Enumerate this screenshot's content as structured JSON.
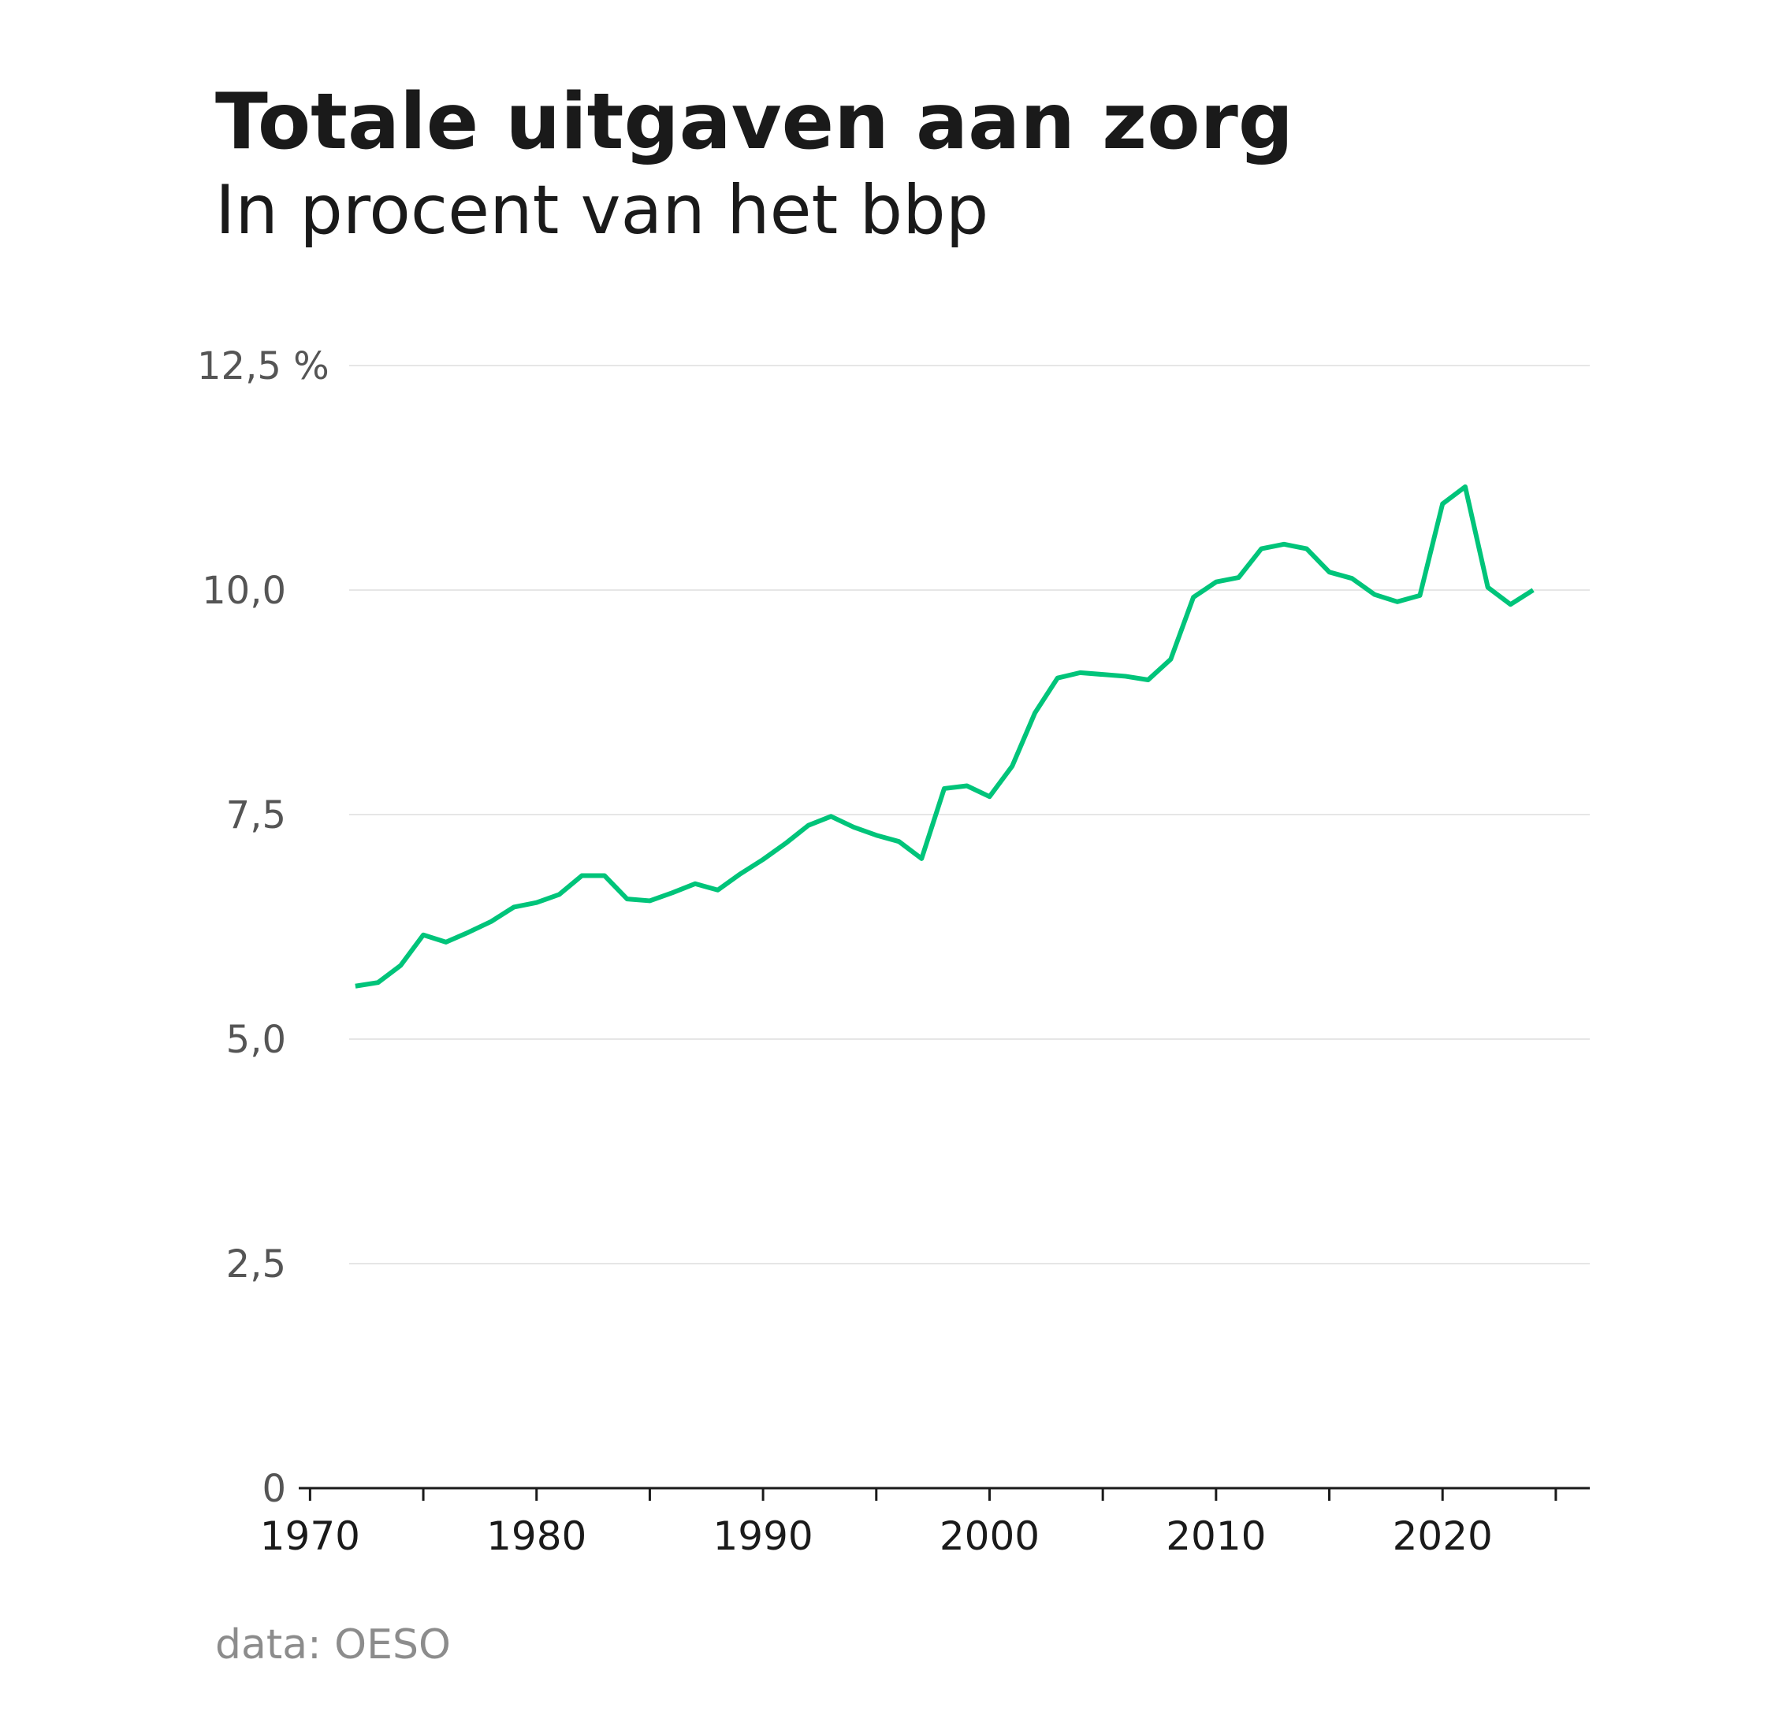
{
  "chart_data": {
    "type": "line",
    "title": "Totale uitgaven aan zorg",
    "subtitle": "In procent van het bbp",
    "source": "data: OESO",
    "x": [
      1972,
      1973,
      1974,
      1975,
      1976,
      1977,
      1978,
      1979,
      1980,
      1981,
      1982,
      1983,
      1984,
      1985,
      1986,
      1987,
      1988,
      1989,
      1990,
      1991,
      1992,
      1993,
      1994,
      1995,
      1996,
      1997,
      1998,
      1999,
      2000,
      2001,
      2002,
      2003,
      2004,
      2005,
      2006,
      2007,
      2008,
      2009,
      2010,
      2011,
      2012,
      2013,
      2014,
      2015,
      2016,
      2017,
      2018,
      2019,
      2020,
      2021,
      2022,
      2023,
      2024
    ],
    "series": [
      {
        "name": "Totale uitgaven aan zorg",
        "color": "#00c47a",
        "values": [
          5.59,
          5.63,
          5.82,
          6.16,
          6.08,
          6.19,
          6.31,
          6.47,
          6.52,
          6.61,
          6.82,
          6.82,
          6.56,
          6.54,
          6.63,
          6.73,
          6.66,
          6.84,
          7.0,
          7.18,
          7.38,
          7.48,
          7.36,
          7.27,
          7.2,
          7.01,
          7.79,
          7.82,
          7.7,
          8.04,
          8.63,
          9.02,
          9.08,
          9.06,
          9.04,
          9.0,
          9.23,
          9.92,
          10.09,
          10.14,
          10.46,
          10.51,
          10.46,
          10.2,
          10.13,
          9.95,
          9.87,
          9.94,
          10.96,
          11.15,
          10.03,
          9.84,
          10.0
        ]
      }
    ],
    "xlim": [
      1969.5,
      2026.5
    ],
    "xticks": [
      1970,
      1980,
      1990,
      2000,
      2010,
      2020
    ],
    "xminorticks": [
      1975,
      1985,
      1995,
      2005,
      2015,
      2025
    ],
    "ylim": [
      0,
      12.5
    ],
    "yticks": [
      0,
      {
        "value": 2.5,
        "label": "2,5"
      },
      {
        "value": 5,
        "label": "5,0"
      },
      {
        "value": 7.5,
        "label": "7,5"
      },
      {
        "value": 10,
        "label": "10,0"
      },
      {
        "value": 12.5,
        "label": "12,5 %"
      }
    ],
    "grid": true
  }
}
